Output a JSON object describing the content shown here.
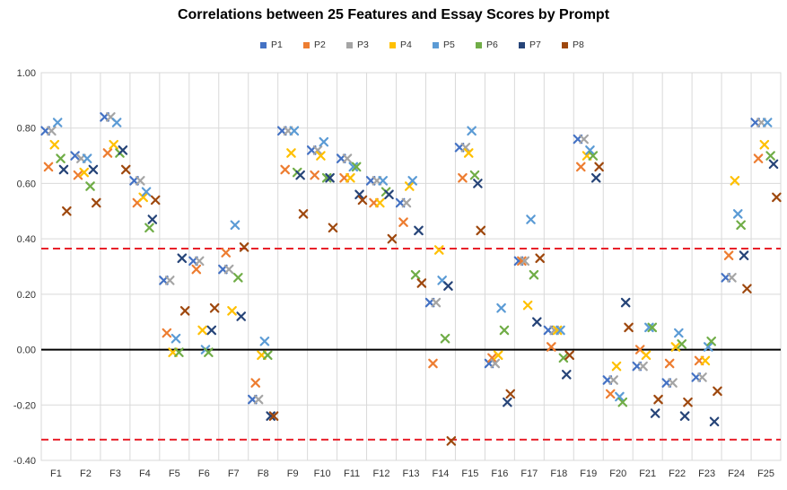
{
  "chart_data": {
    "type": "scatter",
    "title": "Correlations between 25 Features and Essay Scores by Prompt",
    "categories": [
      "F1",
      "F2",
      "F3",
      "F4",
      "F5",
      "F6",
      "F7",
      "F8",
      "F9",
      "F10",
      "F11",
      "F12",
      "F13",
      "F14",
      "F15",
      "F16",
      "F17",
      "F18",
      "F19",
      "F20",
      "F21",
      "F22",
      "F23",
      "F24",
      "F25"
    ],
    "ylim": [
      -0.4,
      1.0
    ],
    "yticks": [
      "1.00",
      "0.80",
      "0.60",
      "0.40",
      "0.20",
      "0.00",
      "-0.20",
      "-0.40"
    ],
    "grid": true,
    "legend_position": "top",
    "marker": "x",
    "reference_lines": [
      {
        "type": "zero",
        "value": 0.0,
        "color": "#000000"
      },
      {
        "type": "threshold",
        "value": 0.365,
        "color": "#e8202a",
        "dashed": true
      },
      {
        "type": "threshold",
        "value": -0.325,
        "color": "#e8202a",
        "dashed": true
      }
    ],
    "series": [
      {
        "name": "P1",
        "color": "#4472c4",
        "values": [
          0.79,
          0.7,
          0.84,
          0.61,
          0.25,
          0.32,
          0.29,
          -0.18,
          0.79,
          0.72,
          0.69,
          0.61,
          0.53,
          0.17,
          0.73,
          -0.05,
          0.32,
          0.07,
          0.76,
          -0.11,
          -0.06,
          -0.12,
          -0.1,
          0.26,
          0.82
        ]
      },
      {
        "name": "P2",
        "color": "#ed7d31",
        "values": [
          0.66,
          0.63,
          0.71,
          0.53,
          0.06,
          0.29,
          0.35,
          -0.12,
          0.65,
          0.63,
          0.62,
          0.53,
          0.46,
          -0.05,
          0.62,
          -0.03,
          0.32,
          0.01,
          0.66,
          -0.16,
          0.0,
          -0.05,
          -0.04,
          0.34,
          0.69
        ]
      },
      {
        "name": "P3",
        "color": "#a5a5a5",
        "values": [
          0.79,
          0.69,
          0.84,
          0.61,
          0.25,
          0.32,
          0.29,
          -0.18,
          0.79,
          0.72,
          0.69,
          0.61,
          0.53,
          0.17,
          0.73,
          -0.05,
          0.32,
          0.07,
          0.76,
          -0.11,
          -0.06,
          -0.12,
          -0.1,
          0.26,
          0.82
        ]
      },
      {
        "name": "P4",
        "color": "#ffc000",
        "values": [
          0.74,
          0.64,
          0.74,
          0.55,
          -0.01,
          0.07,
          0.14,
          -0.02,
          0.71,
          0.7,
          0.62,
          0.53,
          0.59,
          0.36,
          0.71,
          -0.02,
          0.16,
          0.07,
          0.7,
          -0.06,
          -0.02,
          0.01,
          -0.04,
          0.61,
          0.74
        ]
      },
      {
        "name": "P5",
        "color": "#5b9bd5",
        "values": [
          0.82,
          0.69,
          0.82,
          0.57,
          0.04,
          0.0,
          0.45,
          0.03,
          0.79,
          0.75,
          0.66,
          0.61,
          0.61,
          0.25,
          0.79,
          0.15,
          0.47,
          0.07,
          0.72,
          -0.17,
          0.08,
          0.06,
          0.01,
          0.49,
          0.82
        ]
      },
      {
        "name": "P6",
        "color": "#70ad47",
        "values": [
          0.69,
          0.59,
          0.71,
          0.44,
          -0.01,
          -0.01,
          0.26,
          -0.02,
          0.64,
          0.62,
          0.66,
          0.57,
          0.27,
          0.04,
          0.63,
          0.07,
          0.27,
          -0.03,
          0.7,
          -0.19,
          0.08,
          0.02,
          0.03,
          0.45,
          0.7
        ]
      },
      {
        "name": "P7",
        "color": "#264478",
        "values": [
          0.65,
          0.65,
          0.72,
          0.47,
          0.33,
          0.07,
          0.12,
          -0.24,
          0.63,
          0.62,
          0.56,
          0.56,
          0.43,
          0.23,
          0.6,
          -0.19,
          0.1,
          -0.09,
          0.62,
          0.17,
          -0.23,
          -0.24,
          -0.26,
          0.34,
          0.67
        ]
      },
      {
        "name": "P8",
        "color": "#9e480e",
        "values": [
          0.5,
          0.53,
          0.65,
          0.54,
          0.14,
          0.15,
          0.37,
          -0.24,
          0.49,
          0.44,
          0.54,
          0.4,
          0.24,
          -0.33,
          0.43,
          -0.16,
          0.33,
          -0.02,
          0.66,
          0.08,
          -0.18,
          -0.19,
          -0.15,
          0.22,
          0.55
        ]
      }
    ]
  }
}
